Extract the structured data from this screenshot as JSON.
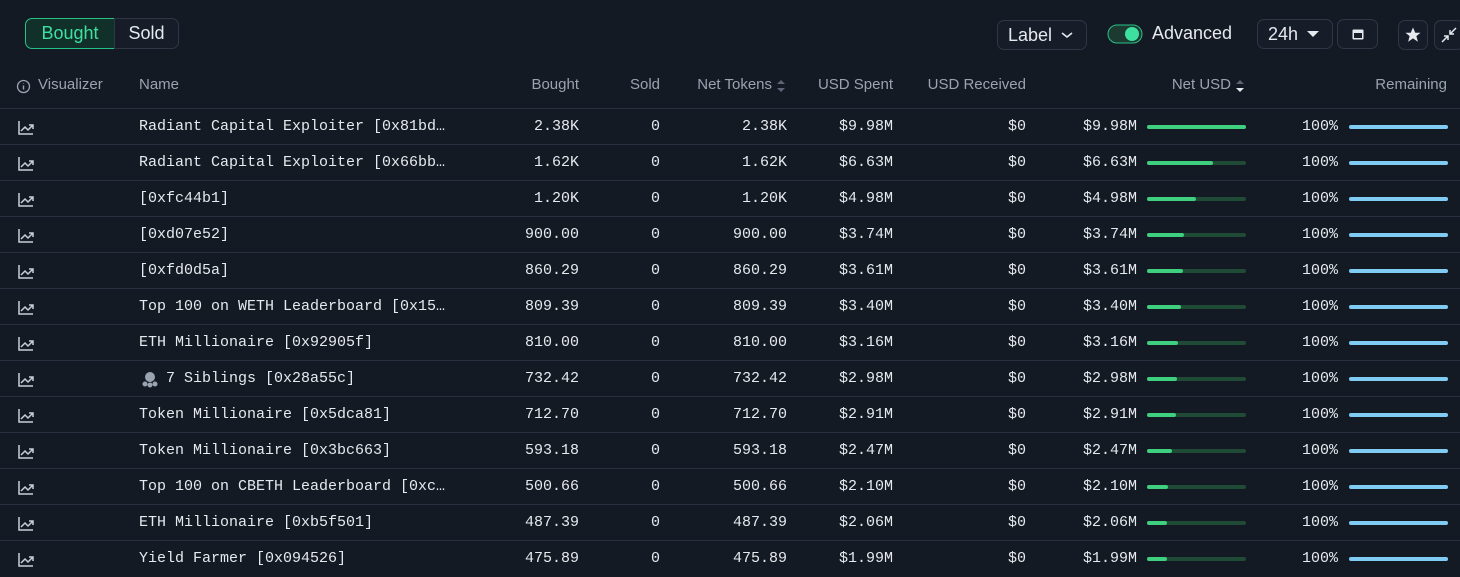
{
  "toolbar": {
    "tabs": [
      "Bought",
      "Sold"
    ],
    "label_filter": "Label",
    "advanced": "Advanced",
    "timeframe": "24h"
  },
  "columns": [
    "Visualizer",
    "Name",
    "Bought",
    "Sold",
    "Net Tokens",
    "USD Spent",
    "USD Received",
    "Net USD",
    "Remaining"
  ],
  "rows": [
    [
      "Radiant Capital Exploiter [0x81bd…",
      "2.38K",
      "0",
      "2.38K",
      "$9.98M",
      "$0",
      "$9.98M",
      "100%"
    ],
    [
      "Radiant Capital Exploiter [0x66bb…",
      "1.62K",
      "0",
      "1.62K",
      "$6.63M",
      "$0",
      "$6.63M",
      "100%"
    ],
    [
      "[0xfc44b1]",
      "1.20K",
      "0",
      "1.20K",
      "$4.98M",
      "$0",
      "$4.98M",
      "100%"
    ],
    [
      "[0xd07e52]",
      "900.00",
      "0",
      "900.00",
      "$3.74M",
      "$0",
      "$3.74M",
      "100%"
    ],
    [
      "[0xfd0d5a]",
      "860.29",
      "0",
      "860.29",
      "$3.61M",
      "$0",
      "$3.61M",
      "100%"
    ],
    [
      "Top 100 on WETH Leaderboard [0x15…",
      "809.39",
      "0",
      "809.39",
      "$3.40M",
      "$0",
      "$3.40M",
      "100%"
    ],
    [
      "ETH Millionaire [0x92905f]",
      "810.00",
      "0",
      "810.00",
      "$3.16M",
      "$0",
      "$3.16M",
      "100%"
    ],
    [
      "7 Siblings [0x28a55c]",
      "732.42",
      "0",
      "732.42",
      "$2.98M",
      "$0",
      "$2.98M",
      "100%"
    ],
    [
      "Token Millionaire [0x5dca81]",
      "712.70",
      "0",
      "712.70",
      "$2.91M",
      "$0",
      "$2.91M",
      "100%"
    ],
    [
      "Token Millionaire [0x3bc663]",
      "593.18",
      "0",
      "593.18",
      "$2.47M",
      "$0",
      "$2.47M",
      "100%"
    ],
    [
      "Top 100 on CBETH Leaderboard [0xc…",
      "500.66",
      "0",
      "500.66",
      "$2.10M",
      "$0",
      "$2.10M",
      "100%"
    ],
    [
      "ETH Millionaire [0xb5f501]",
      "487.39",
      "0",
      "487.39",
      "$2.06M",
      "$0",
      "$2.06M",
      "100%"
    ],
    [
      "Yield Farmer [0x094526]",
      "475.89",
      "0",
      "475.89",
      "$1.99M",
      "$0",
      "$1.99M",
      "100%"
    ]
  ]
}
